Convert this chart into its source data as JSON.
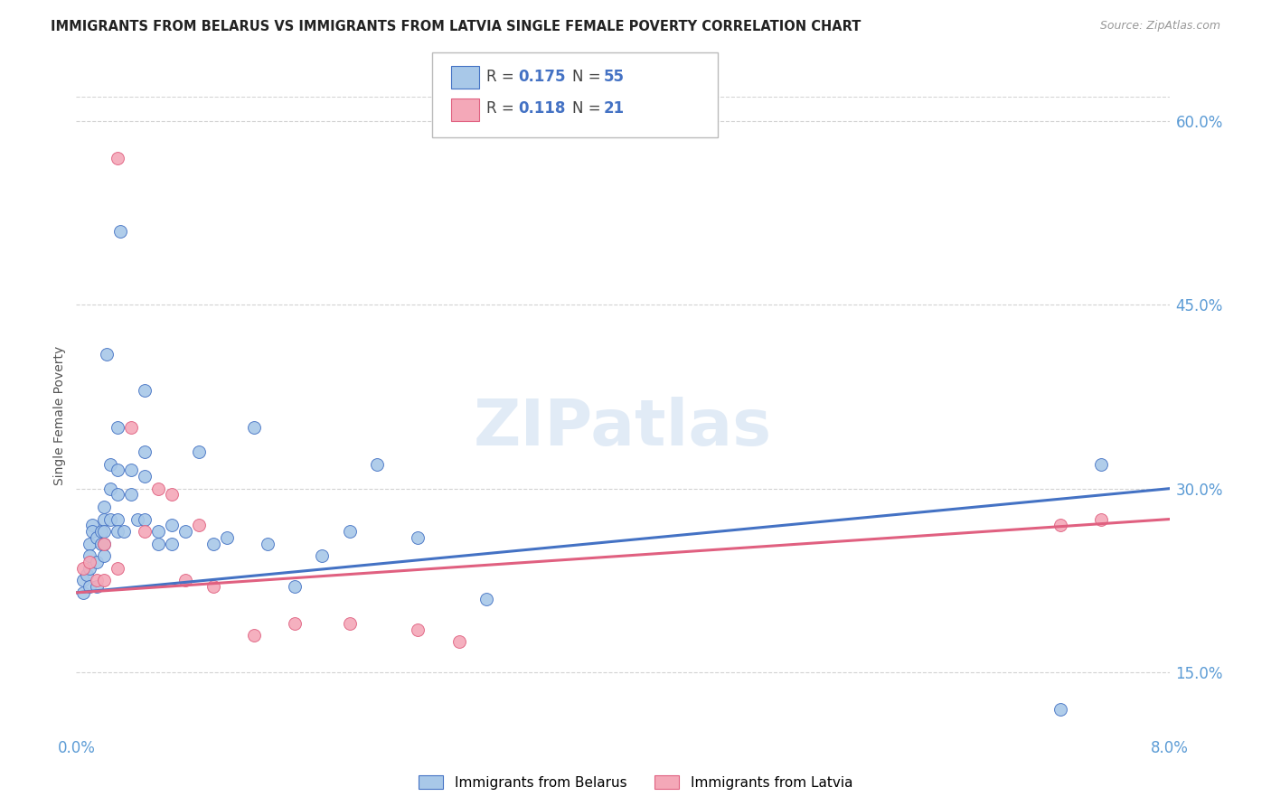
{
  "title": "IMMIGRANTS FROM BELARUS VS IMMIGRANTS FROM LATVIA SINGLE FEMALE POVERTY CORRELATION CHART",
  "source": "Source: ZipAtlas.com",
  "ylabel": "Single Female Poverty",
  "xlim": [
    0.0,
    0.08
  ],
  "ylim": [
    0.1,
    0.62
  ],
  "legend_R_belarus": "0.175",
  "legend_N_belarus": "55",
  "legend_R_latvia": "0.118",
  "legend_N_latvia": "21",
  "color_belarus": "#a8c8e8",
  "color_latvia": "#f4a8b8",
  "color_line_belarus": "#4472c4",
  "color_line_latvia": "#e06080",
  "color_tick": "#5b9bd5",
  "watermark": "ZIPatlas",
  "belarus_x": [
    0.0005,
    0.0005,
    0.0008,
    0.001,
    0.001,
    0.001,
    0.001,
    0.0012,
    0.0012,
    0.0015,
    0.0015,
    0.0015,
    0.0018,
    0.0018,
    0.002,
    0.002,
    0.002,
    0.002,
    0.002,
    0.0022,
    0.0025,
    0.0025,
    0.0025,
    0.003,
    0.003,
    0.003,
    0.003,
    0.003,
    0.0032,
    0.0035,
    0.004,
    0.004,
    0.0045,
    0.005,
    0.005,
    0.005,
    0.005,
    0.006,
    0.006,
    0.007,
    0.007,
    0.008,
    0.009,
    0.01,
    0.011,
    0.013,
    0.014,
    0.016,
    0.018,
    0.02,
    0.022,
    0.025,
    0.03,
    0.072,
    0.075
  ],
  "belarus_y": [
    0.225,
    0.215,
    0.23,
    0.255,
    0.245,
    0.235,
    0.22,
    0.27,
    0.265,
    0.26,
    0.24,
    0.22,
    0.265,
    0.255,
    0.285,
    0.275,
    0.265,
    0.255,
    0.245,
    0.41,
    0.32,
    0.3,
    0.275,
    0.35,
    0.315,
    0.295,
    0.275,
    0.265,
    0.51,
    0.265,
    0.315,
    0.295,
    0.275,
    0.38,
    0.33,
    0.31,
    0.275,
    0.265,
    0.255,
    0.27,
    0.255,
    0.265,
    0.33,
    0.255,
    0.26,
    0.35,
    0.255,
    0.22,
    0.245,
    0.265,
    0.32,
    0.26,
    0.21,
    0.12,
    0.32
  ],
  "latvia_x": [
    0.0005,
    0.001,
    0.0015,
    0.002,
    0.002,
    0.003,
    0.003,
    0.004,
    0.005,
    0.006,
    0.007,
    0.008,
    0.009,
    0.01,
    0.013,
    0.016,
    0.02,
    0.025,
    0.028,
    0.072,
    0.075
  ],
  "latvia_y": [
    0.235,
    0.24,
    0.225,
    0.255,
    0.225,
    0.57,
    0.235,
    0.35,
    0.265,
    0.3,
    0.295,
    0.225,
    0.27,
    0.22,
    0.18,
    0.19,
    0.19,
    0.185,
    0.175,
    0.27,
    0.275
  ],
  "grid_color": "#d3d3d3",
  "bg_color": "#ffffff"
}
